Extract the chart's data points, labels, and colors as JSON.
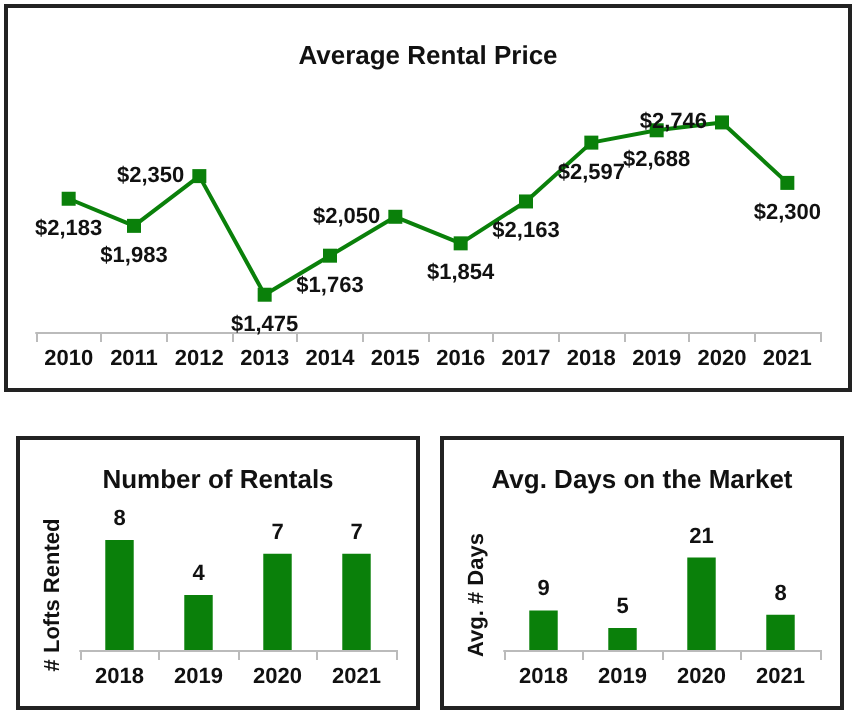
{
  "chart_data": [
    {
      "type": "line",
      "title": "Average Rental Price",
      "categories": [
        "2010",
        "2011",
        "2012",
        "2013",
        "2014",
        "2015",
        "2016",
        "2017",
        "2018",
        "2019",
        "2020",
        "2021"
      ],
      "series": [
        {
          "color": "#0a800a",
          "values": [
            2183,
            1983,
            2350,
            1475,
            1763,
            2050,
            1854,
            2163,
            2597,
            2688,
            2746,
            2300
          ],
          "value_labels": [
            "$2,183",
            "$1,983",
            "$2,350",
            "$1,475",
            "$1,763",
            "$2,050",
            "$1,854",
            "$2,163",
            "$2,597",
            "$2,688",
            "$2,746",
            "$2,300"
          ]
        }
      ],
      "marker": "square",
      "grid": false
    },
    {
      "type": "bar",
      "title": "Number of Rentals",
      "ylabel": "# Lofts Rented",
      "categories": [
        "2018",
        "2019",
        "2020",
        "2021"
      ],
      "series": [
        {
          "color": "#0a800a",
          "values": [
            8,
            4,
            7,
            7
          ]
        }
      ],
      "data_labels": true,
      "grid": false
    },
    {
      "type": "bar",
      "title": "Avg. Days on the Market",
      "ylabel": "Avg. # Days",
      "categories": [
        "2018",
        "2019",
        "2020",
        "2021"
      ],
      "series": [
        {
          "color": "#0a800a",
          "values": [
            9,
            5,
            21,
            8
          ]
        }
      ],
      "data_labels": true,
      "grid": false
    }
  ]
}
